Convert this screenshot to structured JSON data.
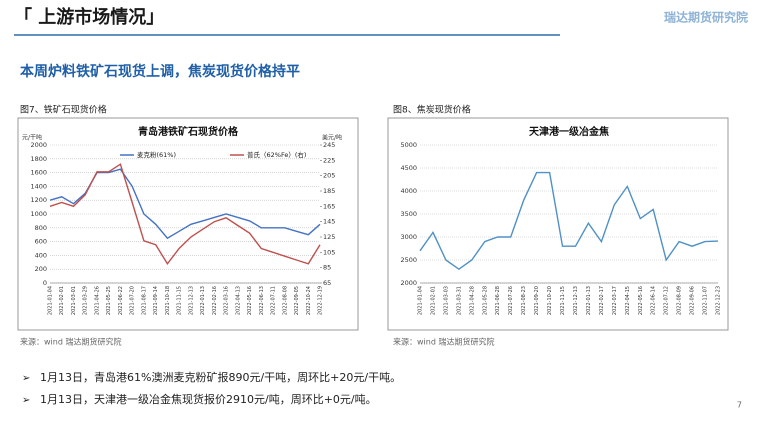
{
  "header": {
    "title": "「 上游市场情况」",
    "logo": "瑞达期货研究院"
  },
  "subtitle": "本周炉料铁矿石现货上调，焦炭现货价格持平",
  "figures": [
    {
      "caption": "图7、铁矿石现货价格",
      "source": "来源：wind   瑞达期货研究院"
    },
    {
      "caption": "图8、焦炭现货价格",
      "source": "来源：wind   瑞达期货研究院"
    }
  ],
  "bullets": [
    "1月13日，青岛港61%澳洲麦克粉矿报890元/干吨，周环比+20元/干吨。",
    "1月13日，天津港一级冶金焦现货报价2910元/吨，周环比+0元/吨。"
  ],
  "page_number": "7",
  "chart_data": [
    {
      "type": "line",
      "title": "青岛港铁矿石现货价格",
      "y_label": "元/干吨",
      "y2_label": "美元/吨",
      "categories": [
        "2021-01-04",
        "2021-02-01",
        "2021-03-01",
        "2021-03-29",
        "2021-04-26",
        "2021-05-25",
        "2021-06-22",
        "2021-07-20",
        "2021-08-17",
        "2021-09-14",
        "2021-10-18",
        "2021-11-15",
        "2021-12-13",
        "2022-01-13",
        "2022-02-16",
        "2022-03-16",
        "2022-04-13",
        "2022-05-16",
        "2022-06-13",
        "2022-07-11",
        "2022-08-08",
        "2022-09-05",
        "2022-10-24",
        "2022-12-19"
      ],
      "series": [
        {
          "name": "麦克粉(61%)",
          "color": "#4472c4",
          "values": [
            1200,
            1250,
            1150,
            1300,
            1600,
            1600,
            1650,
            1400,
            1000,
            850,
            650,
            750,
            850,
            900,
            950,
            1000,
            950,
            900,
            800,
            800,
            800,
            750,
            700,
            850
          ]
        },
        {
          "name": "普氏（62%Fe）(右)",
          "color": "#c0504d",
          "axis": "y2",
          "values": [
            165,
            170,
            165,
            180,
            210,
            210,
            220,
            170,
            120,
            115,
            90,
            110,
            125,
            135,
            145,
            150,
            140,
            130,
            110,
            105,
            100,
            95,
            90,
            115
          ]
        }
      ],
      "ylim": [
        0,
        2000
      ],
      "yticks": [
        0,
        200,
        400,
        600,
        800,
        1000,
        1200,
        1400,
        1600,
        1800,
        2000
      ],
      "y2lim": [
        65,
        245
      ],
      "y2ticks": [
        65,
        85,
        105,
        125,
        145,
        165,
        185,
        205,
        225,
        245
      ],
      "grid": true
    },
    {
      "type": "line",
      "title": "天津港一级冶金焦",
      "categories": [
        "2021-01-04",
        "2021-02-01",
        "2021-03-03",
        "2021-03-31",
        "2021-04-28",
        "2021-05-28",
        "2021-06-28",
        "2021-07-26",
        "2021-08-23",
        "2021-09-20",
        "2021-10-20",
        "2021-11-15",
        "2021-12-13",
        "2022-01-13",
        "2022-02-17",
        "2022-03-17",
        "2022-04-15",
        "2022-05-16",
        "2022-06-14",
        "2022-07-12",
        "2022-08-09",
        "2022-09-06",
        "2022-11-07",
        "2022-12-23"
      ],
      "values": [
        2700,
        3100,
        2500,
        2300,
        2500,
        2900,
        3000,
        3000,
        3800,
        4400,
        4400,
        2800,
        2800,
        3300,
        2900,
        3700,
        4100,
        3400,
        3600,
        2500,
        2900,
        2800,
        2900,
        2910
      ],
      "color": "#4f91c6",
      "ylim": [
        2000,
        5000
      ],
      "yticks": [
        2000,
        2500,
        3000,
        3500,
        4000,
        4500,
        5000
      ],
      "grid": true
    }
  ]
}
